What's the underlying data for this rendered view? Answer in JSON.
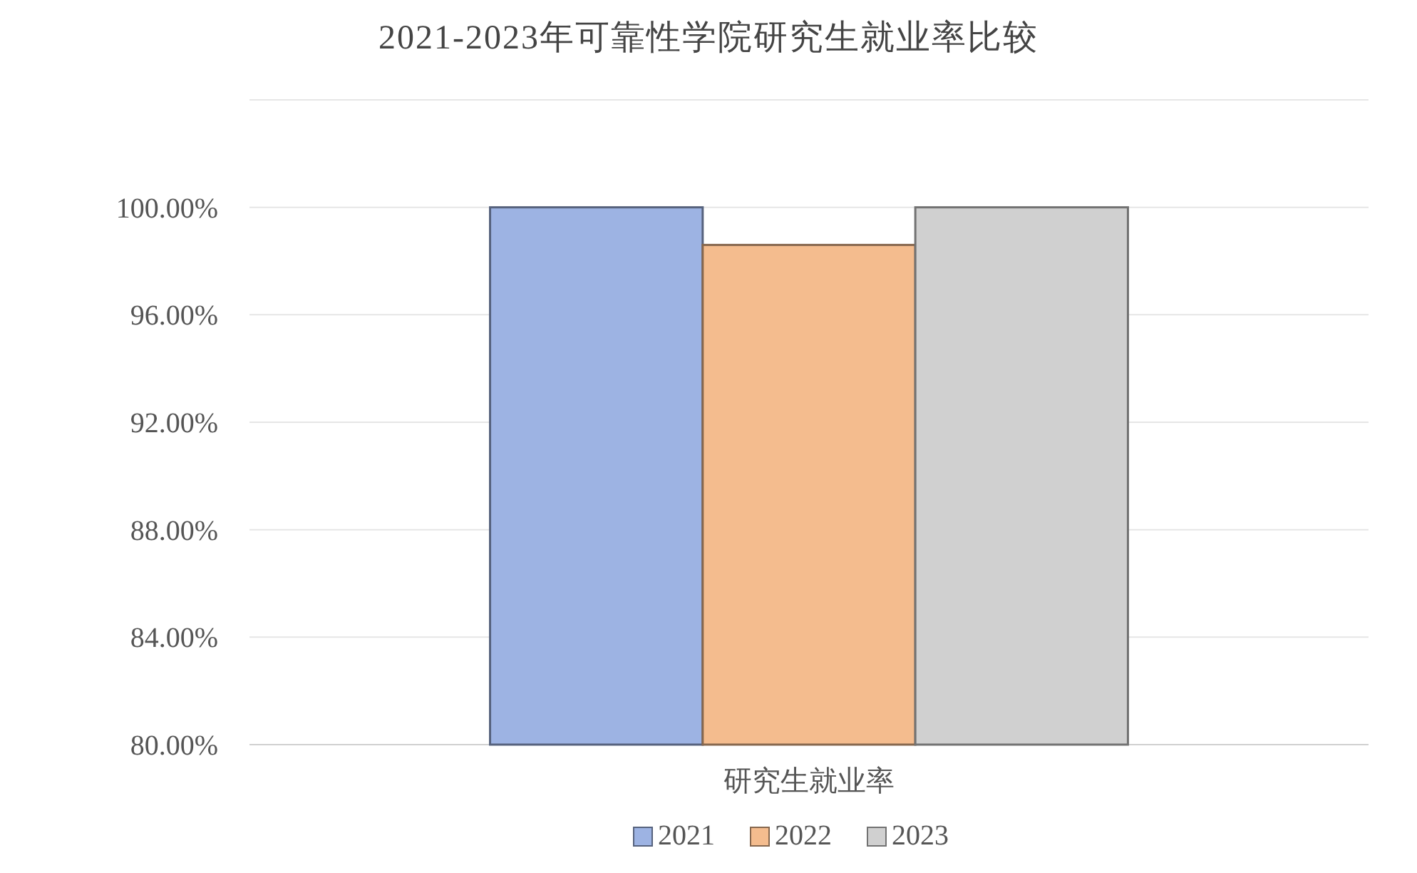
{
  "chart_data": {
    "type": "bar",
    "title": "2021-2023年可靠性学院研究生就业率比较",
    "categories": [
      "研究生就业率"
    ],
    "series": [
      {
        "name": "2021",
        "color": "#9db3e3",
        "values": [
          100
        ]
      },
      {
        "name": "2022",
        "color": "#f4bc8e",
        "values": [
          98.6
        ]
      },
      {
        "name": "2023",
        "color": "#d0d0d0",
        "values": [
          100
        ]
      }
    ],
    "ylim": [
      80,
      104
    ],
    "yticks": [
      {
        "value": 80,
        "label": "80.00%"
      },
      {
        "value": 84,
        "label": "84.00%"
      },
      {
        "value": 88,
        "label": "88.00%"
      },
      {
        "value": 92,
        "label": "92.00%"
      },
      {
        "value": 96,
        "label": "96.00%"
      },
      {
        "value": 100,
        "label": "100.00%"
      },
      {
        "value": 104,
        "label": null
      }
    ],
    "grid": "y",
    "legend": "bottom"
  }
}
